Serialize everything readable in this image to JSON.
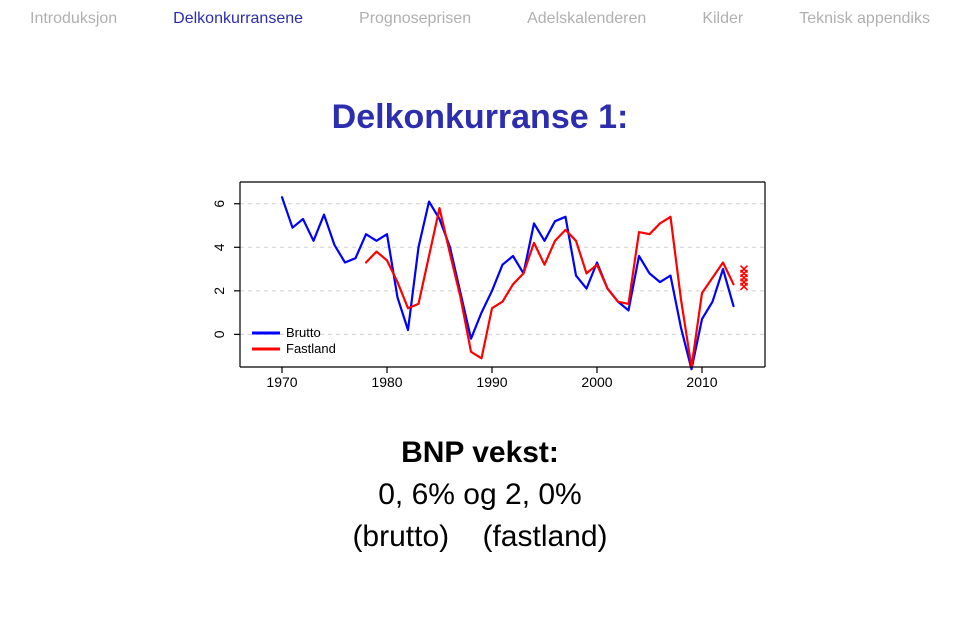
{
  "nav": {
    "items": [
      "Introduksjon",
      "Delkonkurransene",
      "Prognoseprisen",
      "Adelskalenderen",
      "Kilder",
      "Teknisk appendiks"
    ],
    "active_index": 1,
    "text_color": "#b0b0b0",
    "active_color": "#2d2db0",
    "fontsize": 16
  },
  "title": {
    "text": "Delkonkurranse 1:",
    "color": "#2d2db0",
    "fontsize": 34,
    "weight": "bold"
  },
  "chart": {
    "type": "line",
    "background_color": "#ffffff",
    "grid_color": "#d0d0d0",
    "grid_dash": "4,4",
    "axis_color": "#000000",
    "axis_width": 1.2,
    "xlim": [
      1966,
      2016
    ],
    "ylim": [
      -1.5,
      7
    ],
    "xticks": [
      1970,
      1980,
      1990,
      2000,
      2010
    ],
    "yticks": [
      0,
      2,
      4,
      6
    ],
    "tick_fontsize": 14,
    "tick_len": 6,
    "line_width": 2.2,
    "series": [
      {
        "name": "Brutto",
        "color": "#0000ff",
        "years": [
          1970,
          1971,
          1972,
          1973,
          1974,
          1975,
          1976,
          1977,
          1978,
          1979,
          1980,
          1981,
          1982,
          1983,
          1984,
          1985,
          1986,
          1987,
          1988,
          1989,
          1990,
          1991,
          1992,
          1993,
          1994,
          1995,
          1996,
          1997,
          1998,
          1999,
          2000,
          2001,
          2002,
          2003,
          2004,
          2005,
          2006,
          2007,
          2008,
          2009,
          2010,
          2011,
          2012,
          2013
        ],
        "values": [
          6.3,
          4.9,
          5.3,
          4.3,
          5.5,
          4.1,
          3.3,
          3.5,
          4.6,
          4.3,
          4.6,
          1.7,
          0.2,
          4.0,
          6.1,
          5.3,
          4.0,
          1.9,
          -0.2,
          1.0,
          2.0,
          3.2,
          3.6,
          2.8,
          5.1,
          4.3,
          5.2,
          5.4,
          2.7,
          2.1,
          3.3,
          2.1,
          1.5,
          1.1,
          3.6,
          2.8,
          2.4,
          2.7,
          0.3,
          -1.6,
          0.7,
          1.5,
          3.0,
          1.3
        ]
      },
      {
        "name": "Fastland",
        "color": "#ff0000",
        "years": [
          1978,
          1979,
          1980,
          1981,
          1982,
          1983,
          1984,
          1985,
          1986,
          1987,
          1988,
          1989,
          1990,
          1991,
          1992,
          1993,
          1994,
          1995,
          1996,
          1997,
          1998,
          1999,
          2000,
          2001,
          2002,
          2003,
          2004,
          2005,
          2006,
          2007,
          2008,
          2009,
          2010,
          2011,
          2012,
          2013
        ],
        "values": [
          3.3,
          3.8,
          3.4,
          2.4,
          1.2,
          1.4,
          3.6,
          5.8,
          3.7,
          1.7,
          -0.8,
          -1.1,
          1.2,
          1.5,
          2.3,
          2.8,
          4.2,
          3.2,
          4.3,
          4.8,
          4.3,
          2.8,
          3.2,
          2.1,
          1.5,
          1.4,
          4.7,
          4.6,
          5.1,
          5.4,
          1.6,
          -1.5,
          1.9,
          2.6,
          3.3,
          2.3
        ]
      }
    ],
    "markers": {
      "symbol": "x",
      "color": "#ff0000",
      "size": 7,
      "stroke_width": 1.6,
      "year": 2014,
      "values": [
        3.0,
        2.8,
        2.6,
        2.4,
        2.2
      ]
    },
    "legend": {
      "items": [
        {
          "label": "Brutto",
          "color": "#0000ff"
        },
        {
          "label": "Fastland",
          "color": "#ff0000"
        }
      ],
      "fontsize": 13,
      "line_len": 28,
      "line_width": 3
    }
  },
  "footer": {
    "heading": "BNP vekst:",
    "line2_a": "0, 6%",
    "line2_mid": " og ",
    "line2_b": "2, 0%",
    "line3_a": "(brutto)",
    "line3_b": "(fastland)",
    "fontsize": 30
  }
}
